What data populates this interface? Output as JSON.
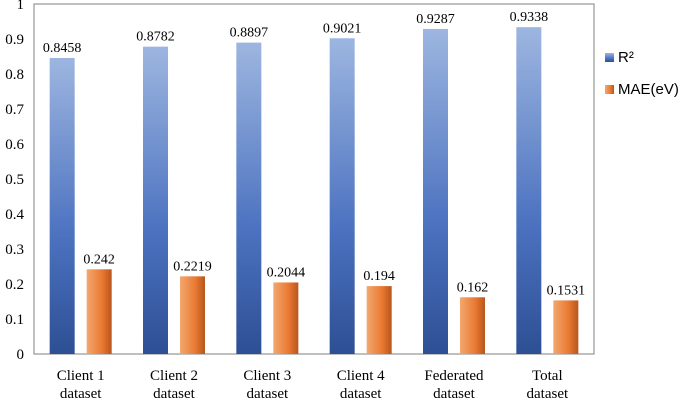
{
  "chart_data": {
    "type": "bar",
    "categories": [
      [
        "Client 1",
        "dataset"
      ],
      [
        "Client 2",
        "dataset"
      ],
      [
        "Client 3",
        "dataset"
      ],
      [
        "Client 4",
        "dataset"
      ],
      [
        "Federated",
        "dataset"
      ],
      [
        "Total",
        "dataset"
      ]
    ],
    "series": [
      {
        "name": "R²",
        "values": [
          0.8458,
          0.8782,
          0.8897,
          0.9021,
          0.9287,
          0.9338
        ],
        "labels": [
          "0.8458",
          "0.8782",
          "0.8897",
          "0.9021",
          "0.9287",
          "0.9338"
        ],
        "color": "#4472C4"
      },
      {
        "name": "MAE(eV)",
        "values": [
          0.242,
          0.2219,
          0.2044,
          0.194,
          0.162,
          0.1531
        ],
        "labels": [
          "0.242",
          "0.2219",
          "0.2044",
          "0.194",
          "0.162",
          "0.1531"
        ],
        "color": "#ED7D31"
      }
    ],
    "yticks": [
      "0",
      "0.1",
      "0.2",
      "0.3",
      "0.4",
      "0.5",
      "0.6",
      "0.7",
      "0.8",
      "0.9",
      "1"
    ],
    "ylim": [
      0,
      1
    ],
    "title": "",
    "xlabel": "",
    "ylabel": "",
    "grid": false,
    "legend_position": "right"
  }
}
